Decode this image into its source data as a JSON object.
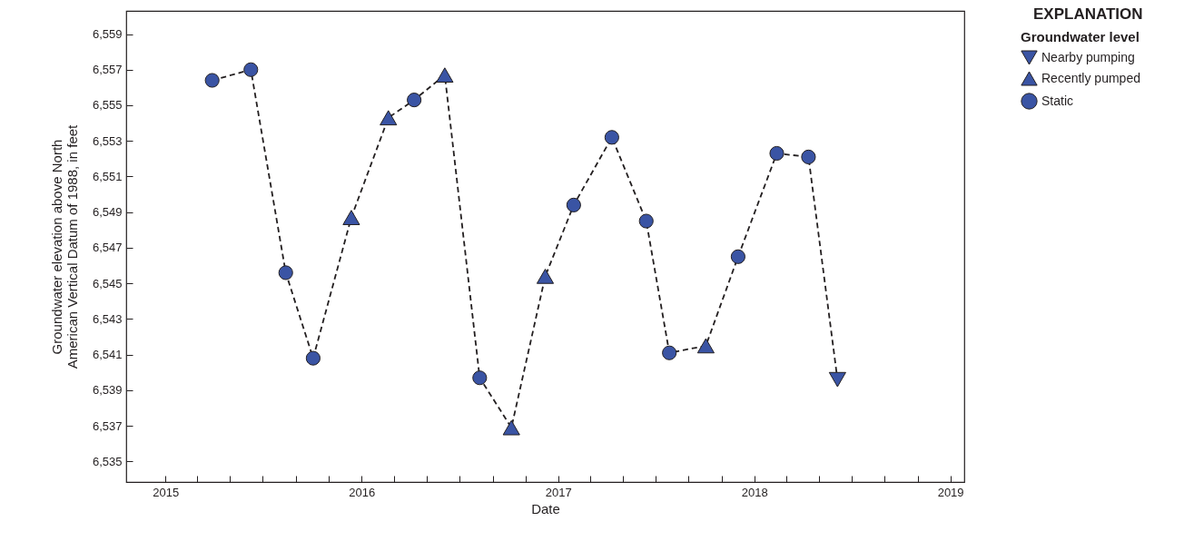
{
  "chart_data": {
    "type": "scatter",
    "xlabel": "Date",
    "ylabel": "Groundwater elevation above North American Vertical Datum of 1988, in feet",
    "legend_title": "Groundwater level",
    "annotations": [
      "EXPLANATION"
    ],
    "legend": "top right",
    "grid": false,
    "xlim": [
      "2014-10-20",
      "2019-01-27"
    ],
    "ylim": [
      6533.85,
      6560.3
    ],
    "xticks": [
      {
        "value": "2015",
        "label": "2015"
      },
      {
        "value": "2015-03-01",
        "label": null
      },
      {
        "value": "2015-05-01",
        "label": null
      },
      {
        "value": "2015-07-01",
        "label": null
      },
      {
        "value": "2015-09-01",
        "label": null
      },
      {
        "value": "2015-11-01",
        "label": null
      },
      {
        "value": "2016",
        "label": "2016"
      },
      {
        "value": "2016-03-01",
        "label": null
      },
      {
        "value": "2016-05-01",
        "label": null
      },
      {
        "value": "2016-07-01",
        "label": null
      },
      {
        "value": "2016-09-01",
        "label": null
      },
      {
        "value": "2016-11-01",
        "label": null
      },
      {
        "value": "2017",
        "label": "2017"
      },
      {
        "value": "2017-03-01",
        "label": null
      },
      {
        "value": "2017-05-01",
        "label": null
      },
      {
        "value": "2017-07-01",
        "label": null
      },
      {
        "value": "2017-09-01",
        "label": null
      },
      {
        "value": "2017-11-01",
        "label": null
      },
      {
        "value": "2018",
        "label": "2018"
      },
      {
        "value": "2018-03-01",
        "label": null
      },
      {
        "value": "2018-05-01",
        "label": null
      },
      {
        "value": "2018-07-01",
        "label": null
      },
      {
        "value": "2018-09-01",
        "label": null
      },
      {
        "value": "2018-11-01",
        "label": null
      },
      {
        "value": "2019",
        "label": "2019"
      }
    ],
    "yticks": [
      {
        "value": 6535,
        "label": "6,535"
      },
      {
        "value": 6537,
        "label": "6,537"
      },
      {
        "value": 6539,
        "label": "6,539"
      },
      {
        "value": 6541,
        "label": "6,541"
      },
      {
        "value": 6543,
        "label": "6,543"
      },
      {
        "value": 6545,
        "label": "6,545"
      },
      {
        "value": 6547,
        "label": "6,547"
      },
      {
        "value": 6549,
        "label": "6,549"
      },
      {
        "value": 6551,
        "label": "6,551"
      },
      {
        "value": 6553,
        "label": "6,553"
      },
      {
        "value": 6555,
        "label": "6,555"
      },
      {
        "value": 6557,
        "label": "6,557"
      },
      {
        "value": 6559,
        "label": "6,559"
      }
    ],
    "series": [
      {
        "type": "line",
        "color": "#231f20",
        "line_style": "dashed",
        "marker": "none",
        "x": [
          "2015-03-29",
          "2015-06-09",
          "2015-08-13",
          "2015-10-03",
          "2015-12-13",
          "2016-02-20",
          "2016-04-08",
          "2016-06-04",
          "2016-08-08",
          "2016-10-06",
          "2016-12-08",
          "2017-01-30",
          "2017-04-11",
          "2017-06-14",
          "2017-07-27",
          "2017-10-03",
          "2017-12-02",
          "2018-02-12",
          "2018-04-12",
          "2018-06-05"
        ],
        "values": [
          6556.4,
          6557.0,
          6545.6,
          6540.8,
          6548.7,
          6554.3,
          6555.3,
          6556.7,
          6539.7,
          6536.9,
          6545.4,
          6549.4,
          6553.2,
          6548.5,
          6541.1,
          6541.5,
          6546.5,
          6552.3,
          6552.1,
          6539.6
        ]
      },
      {
        "name": "Nearby pumping",
        "color": "#3a54a4",
        "marker": "triangle-down",
        "x": [
          "2018-06-05"
        ],
        "values": [
          6539.6
        ]
      },
      {
        "name": "Recently pumped",
        "color": "#3a54a4",
        "marker": "triangle",
        "x": [
          "2015-12-13",
          "2016-02-20",
          "2016-06-04",
          "2016-10-06",
          "2016-12-08",
          "2017-10-03"
        ],
        "values": [
          6548.7,
          6554.3,
          6556.7,
          6536.9,
          6545.4,
          6541.5
        ]
      },
      {
        "name": "Static",
        "color": "#3a54a4",
        "marker": "circle",
        "x": [
          "2015-03-29",
          "2015-06-09",
          "2015-08-13",
          "2015-10-03",
          "2016-04-08",
          "2016-08-08",
          "2017-01-30",
          "2017-04-11",
          "2017-06-14",
          "2017-07-27",
          "2017-12-02",
          "2018-02-12",
          "2018-04-12"
        ],
        "values": [
          6556.4,
          6557.0,
          6545.6,
          6540.8,
          6555.3,
          6539.7,
          6549.4,
          6553.2,
          6548.5,
          6541.1,
          6546.5,
          6552.3,
          6552.1
        ]
      }
    ]
  }
}
